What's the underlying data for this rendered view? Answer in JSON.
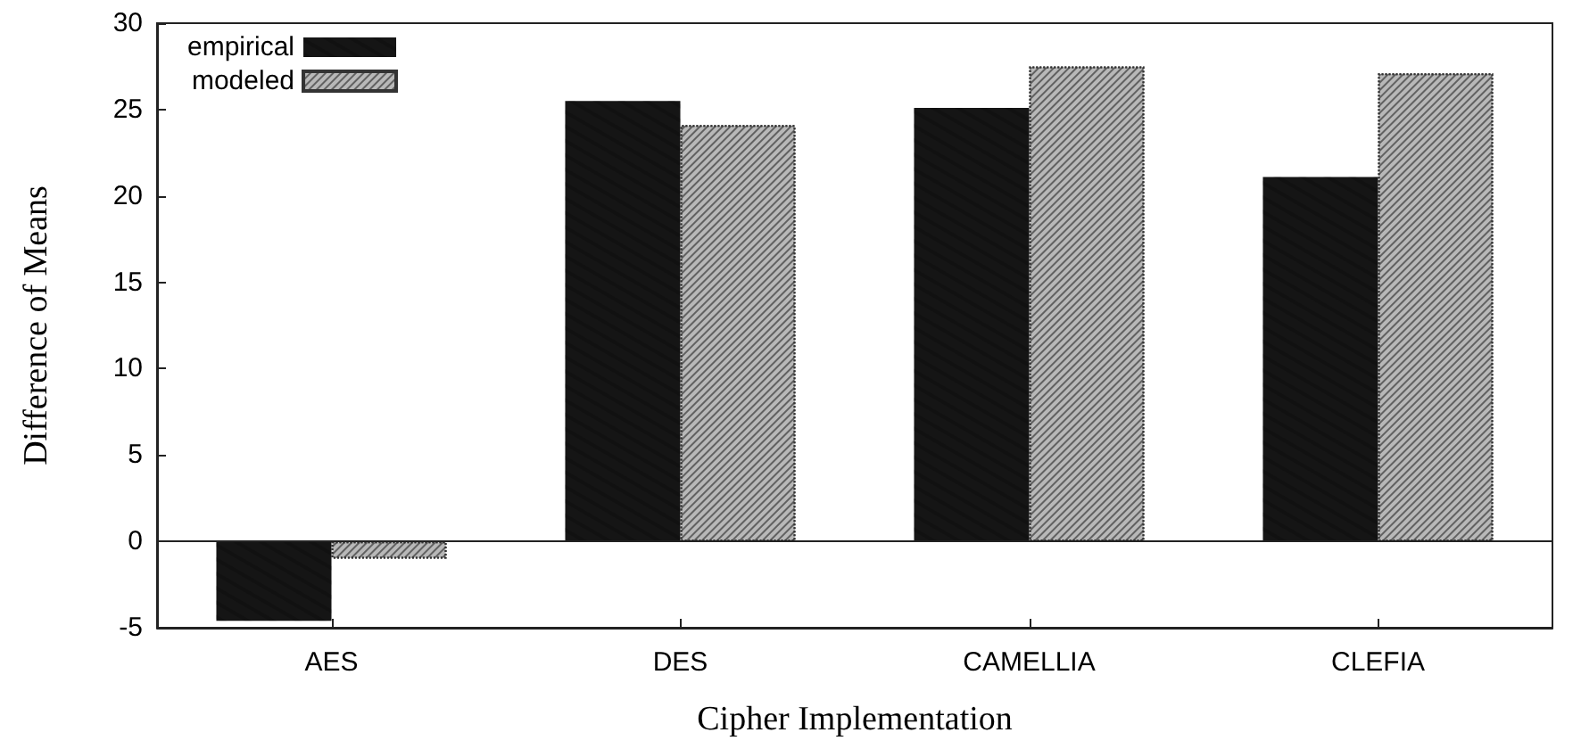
{
  "chart_data": {
    "type": "bar",
    "xlabel": "Cipher Implementation",
    "ylabel": "Difference of Means",
    "categories": [
      "AES",
      "DES",
      "CAMELLIA",
      "CLEFIA"
    ],
    "series": [
      {
        "name": "empirical",
        "color": "#151515",
        "values": [
          -4.6,
          25.5,
          25.1,
          21.1
        ]
      },
      {
        "name": "modeled",
        "color": "#b8b8b8",
        "values": [
          -1.0,
          24.1,
          27.5,
          27.1
        ]
      }
    ],
    "ylim": [
      -5,
      30
    ],
    "yticks": [
      -5,
      0,
      5,
      10,
      15,
      20,
      25,
      30
    ],
    "ref_lines": [
      {
        "axis": "y",
        "value": 0
      }
    ],
    "grid": false,
    "legend": "top left"
  }
}
